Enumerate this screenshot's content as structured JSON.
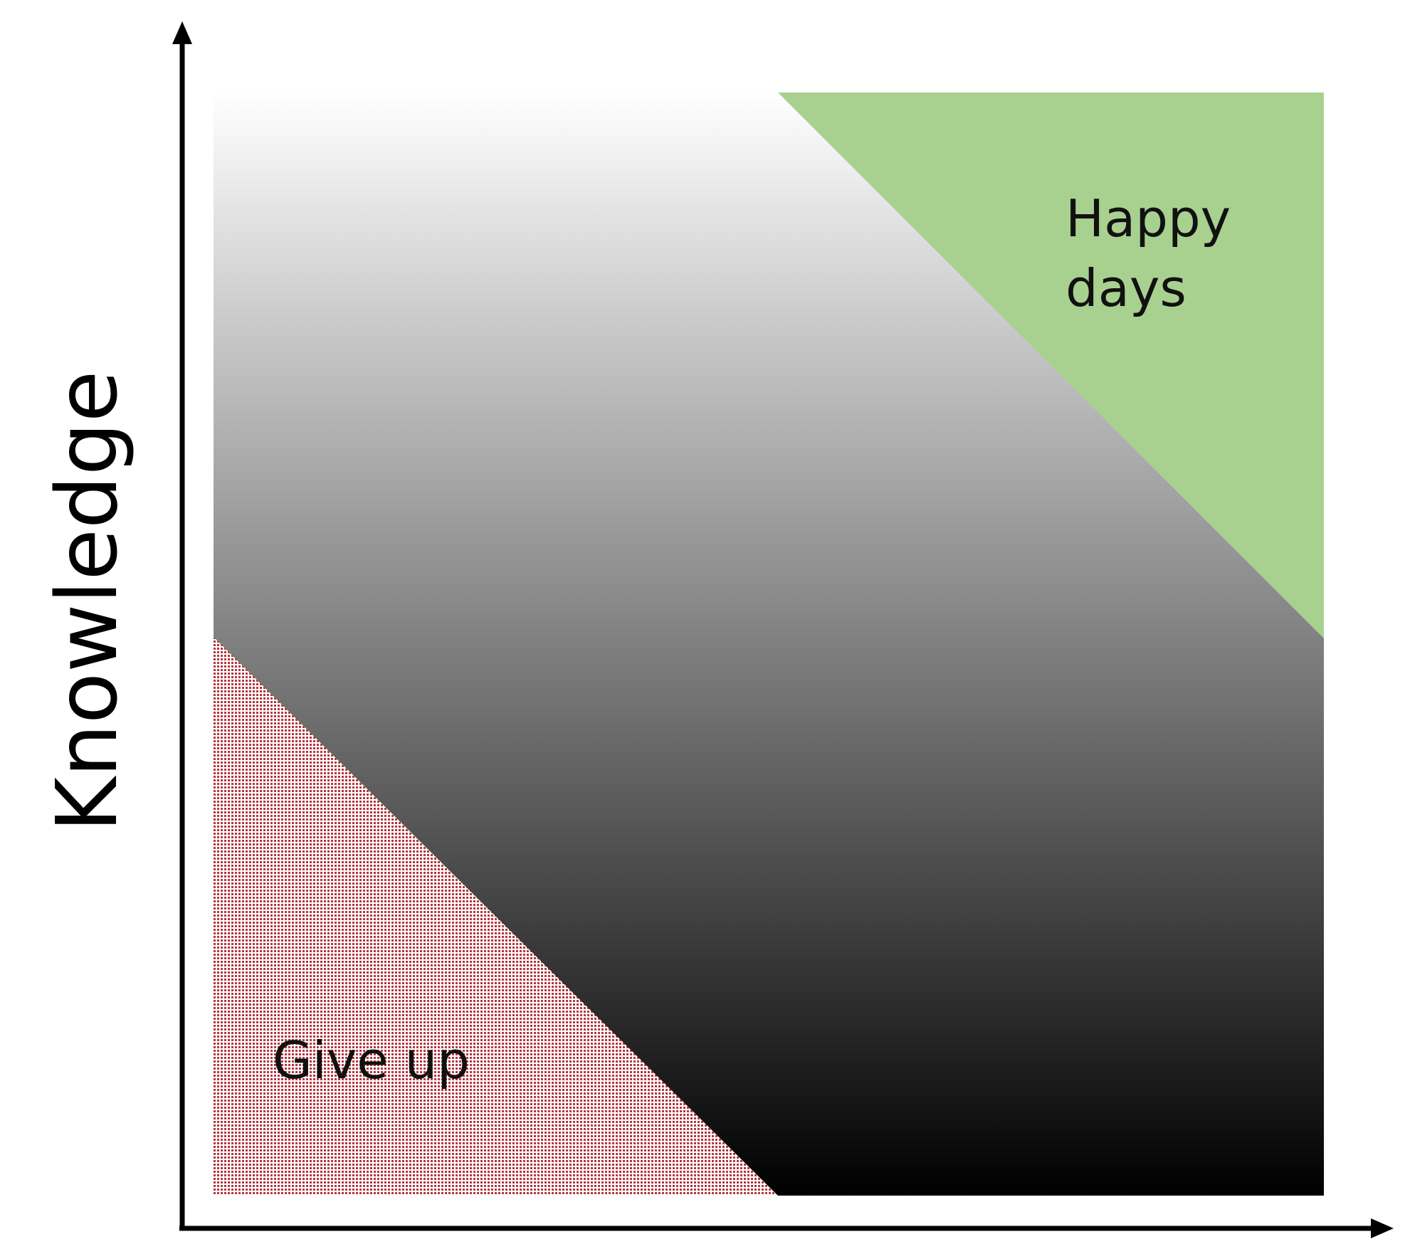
{
  "axes": {
    "y_label": "Knowledge",
    "x_label": ""
  },
  "regions": {
    "happy": {
      "line1": "Happy",
      "line2": "days",
      "color": "#a8d190"
    },
    "give_up": {
      "label": "Give up",
      "color": "#b3373f"
    },
    "gradient": {
      "top_color": "#ffffff",
      "bottom_color": "#000000"
    }
  },
  "colors": {
    "axis": "#000000"
  }
}
